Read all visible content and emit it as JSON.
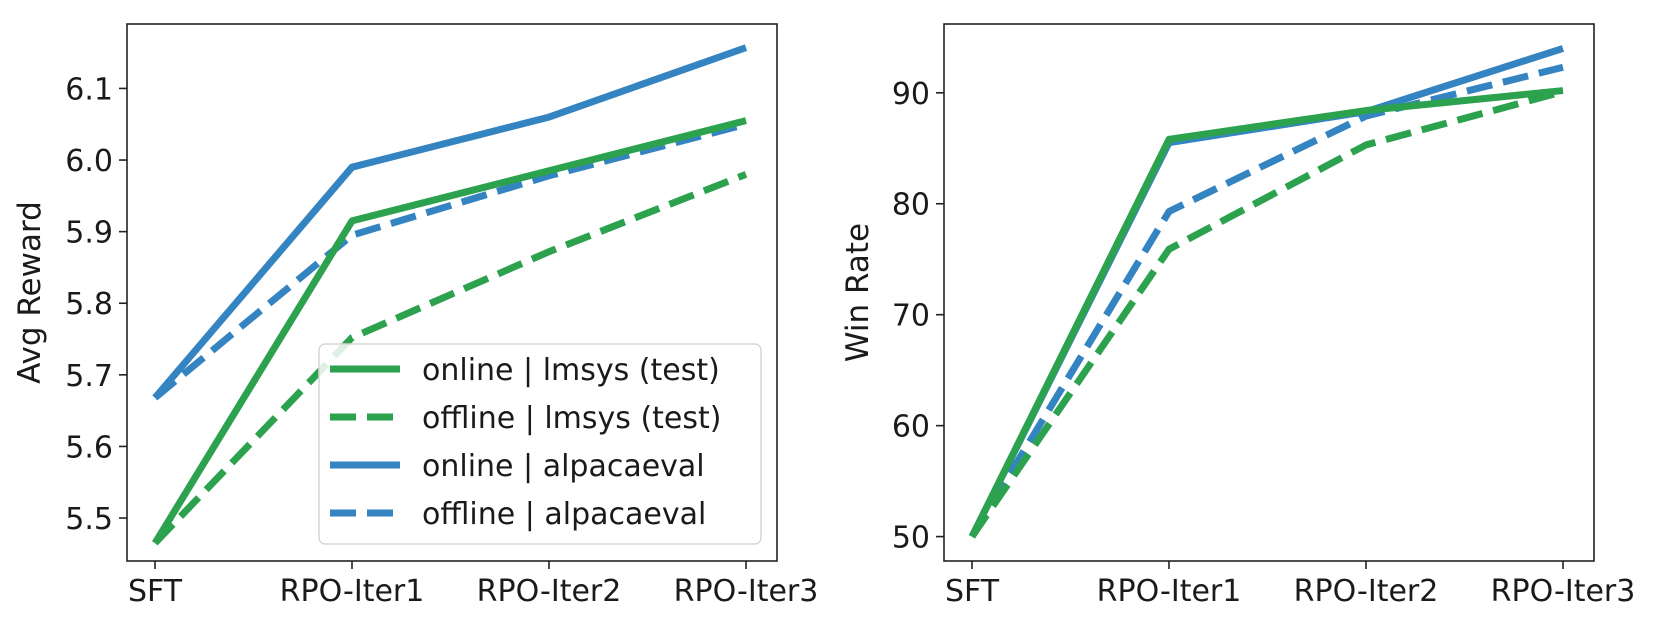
{
  "chart_data": [
    {
      "type": "line",
      "title": "",
      "xlabel": "",
      "ylabel": "Avg Reward",
      "categories": [
        "SFT",
        "RPO-Iter1",
        "RPO-Iter2",
        "RPO-Iter3"
      ],
      "ylim": [
        5.44,
        6.19
      ],
      "yticks": [
        5.5,
        5.6,
        5.7,
        5.8,
        5.9,
        6.0,
        6.1
      ],
      "ytick_labels": [
        "5.5",
        "5.6",
        "5.7",
        "5.8",
        "5.9",
        "6.0",
        "6.1"
      ],
      "grid": false,
      "legend": {
        "position": "bottom-right"
      },
      "series": [
        {
          "name": "online | lmsys (test)",
          "color": "#2ca24f",
          "dash": "solid",
          "values": [
            5.465,
            5.915,
            5.985,
            6.055
          ]
        },
        {
          "name": "offline | lmsys (test)",
          "color": "#2ca24f",
          "dash": "dashed",
          "values": [
            5.465,
            5.752,
            5.872,
            5.98
          ]
        },
        {
          "name": "online | alpacaeval",
          "color": "#3584c2",
          "dash": "solid",
          "values": [
            5.668,
            5.99,
            6.06,
            6.157
          ]
        },
        {
          "name": "offline | alpacaeval",
          "color": "#3584c2",
          "dash": "dashed",
          "values": [
            5.668,
            5.895,
            5.978,
            6.05
          ]
        }
      ]
    },
    {
      "type": "line",
      "title": "",
      "xlabel": "",
      "ylabel": "Win Rate",
      "categories": [
        "SFT",
        "RPO-Iter1",
        "RPO-Iter2",
        "RPO-Iter3"
      ],
      "ylim": [
        47.8,
        96.2
      ],
      "yticks": [
        50,
        60,
        70,
        80,
        90
      ],
      "ytick_labels": [
        "50",
        "60",
        "70",
        "80",
        "90"
      ],
      "grid": false,
      "series": [
        {
          "name": "online | lmsys (test)",
          "color": "#2ca24f",
          "dash": "solid",
          "values": [
            50.0,
            85.8,
            88.4,
            90.2
          ]
        },
        {
          "name": "offline | lmsys (test)",
          "color": "#2ca24f",
          "dash": "dashed",
          "values": [
            50.0,
            75.9,
            85.3,
            90.1
          ]
        },
        {
          "name": "online | alpacaeval",
          "color": "#3584c2",
          "dash": "solid",
          "values": [
            50.0,
            85.5,
            88.3,
            94.0
          ]
        },
        {
          "name": "offline | alpacaeval",
          "color": "#3584c2",
          "dash": "dashed",
          "values": [
            50.0,
            79.3,
            87.9,
            92.3
          ]
        }
      ]
    }
  ]
}
